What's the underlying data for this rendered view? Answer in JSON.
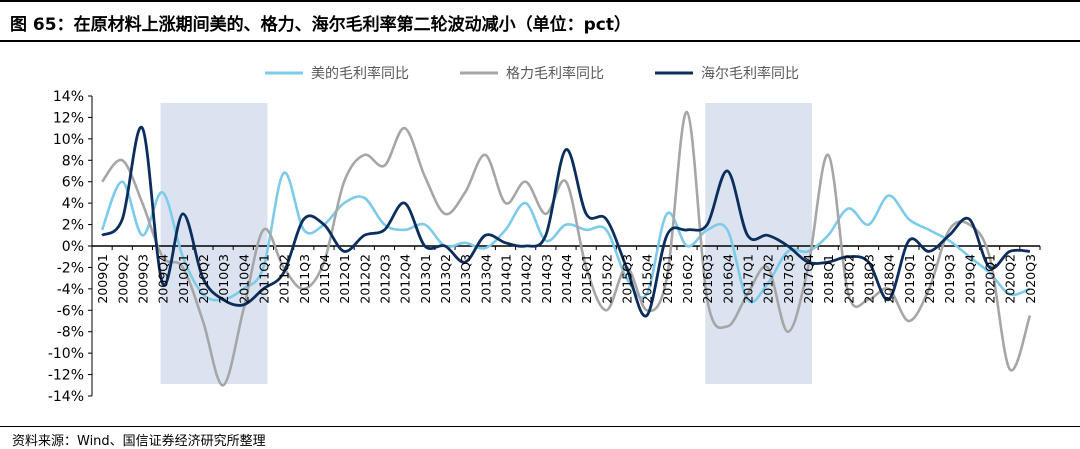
{
  "header": {
    "title": "图 65：在原材料上涨期间美的、格力、海尔毛利率第二轮波动减小（单位：pct）"
  },
  "footer": {
    "source": "资料来源：Wind、国信证券经济研究所整理"
  },
  "colors": {
    "midea": "#7dcbea",
    "gree": "#a6a6a6",
    "haier": "#0b2e5c",
    "shade": "#dbe3f1",
    "axis": "#000000"
  },
  "chart_data": {
    "type": "line",
    "title": "",
    "xlabel": "",
    "ylabel": "",
    "ylim": [
      -14,
      14
    ],
    "yticks": [
      "14%",
      "12%",
      "10%",
      "8%",
      "6%",
      "4%",
      "2%",
      "0%",
      "-2%",
      "-4%",
      "-6%",
      "-8%",
      "-10%",
      "-12%",
      "-14%"
    ],
    "legend_position": "top-center",
    "grid": false,
    "categories": [
      "2009Q1",
      "2009Q2",
      "2009Q3",
      "2009Q4",
      "2010Q1",
      "2010Q2",
      "2010Q3",
      "2010Q4",
      "2011Q1",
      "2011Q2",
      "2011Q3",
      "2011Q4",
      "2012Q1",
      "2012Q2",
      "2012Q3",
      "2012Q4",
      "2013Q1",
      "2013Q2",
      "2013Q3",
      "2013Q4",
      "2014Q1",
      "2014Q2",
      "2014Q3",
      "2014Q4",
      "2015Q1",
      "2015Q2",
      "2015Q3",
      "2015Q4",
      "2016Q1",
      "2016Q2",
      "2016Q3",
      "2016Q4",
      "2017Q1",
      "2017Q2",
      "2017Q3",
      "2017Q4",
      "2018Q1",
      "2018Q2",
      "2018Q3",
      "2018Q4",
      "2019Q1",
      "2019Q2",
      "2019Q3",
      "2019Q4",
      "2020Q1",
      "2020Q2",
      "2020Q3"
    ],
    "shaded_ranges": [
      [
        "2009Q4",
        "2011Q1"
      ],
      [
        "2016Q3",
        "2017Q4"
      ]
    ],
    "series": [
      {
        "name": "美的毛利率同比",
        "key": "midea",
        "values": [
          1.5,
          6.0,
          1.0,
          5.0,
          -1.0,
          -4.5,
          -5.0,
          -4.0,
          -2.0,
          6.8,
          1.5,
          2.0,
          4.0,
          4.5,
          2.0,
          1.5,
          2.0,
          0.0,
          0.3,
          -0.2,
          1.5,
          4.0,
          0.5,
          2.0,
          1.5,
          1.5,
          -3.0,
          -4.5,
          3.0,
          0.0,
          1.5,
          1.5,
          -5.0,
          -3.5,
          -0.5,
          -0.5,
          1.0,
          3.5,
          2.0,
          4.7,
          2.5,
          1.5,
          0.5,
          -1.0,
          -2.5,
          -4.5,
          -4.0
        ]
      },
      {
        "name": "格力毛利率同比",
        "key": "gree",
        "values": [
          6.0,
          8.0,
          4.0,
          -1.0,
          -2.0,
          -7.0,
          -13.0,
          -6.0,
          1.5,
          -2.0,
          -4.0,
          -1.5,
          6.0,
          8.5,
          7.5,
          11.0,
          6.5,
          3.0,
          5.0,
          8.5,
          4.0,
          6.0,
          3.0,
          6.0,
          -2.0,
          -6.0,
          -2.0,
          -6.0,
          -3.0,
          12.5,
          -5.0,
          -7.5,
          -4.5,
          -2.0,
          -8.0,
          -2.0,
          8.5,
          -4.5,
          -5.0,
          -4.0,
          -7.0,
          -4.0,
          1.5,
          2.0,
          -1.0,
          -11.5,
          -6.5
        ]
      },
      {
        "name": "海尔毛利率同比",
        "key": "haier",
        "values": [
          1.0,
          2.5,
          11.0,
          -3.5,
          3.0,
          -3.0,
          -5.0,
          -5.5,
          -4.0,
          -2.5,
          2.5,
          2.0,
          -0.5,
          1.0,
          1.5,
          4.0,
          0.0,
          0.0,
          -1.5,
          1.0,
          0.3,
          0.0,
          1.0,
          9.0,
          3.0,
          2.5,
          -2.0,
          -6.5,
          1.0,
          1.5,
          2.0,
          7.0,
          1.0,
          1.0,
          0.0,
          -1.5,
          -1.5,
          -1.0,
          -1.5,
          -5.0,
          0.5,
          -0.5,
          1.0,
          2.5,
          -2.0,
          -0.5,
          -0.5
        ]
      }
    ]
  }
}
